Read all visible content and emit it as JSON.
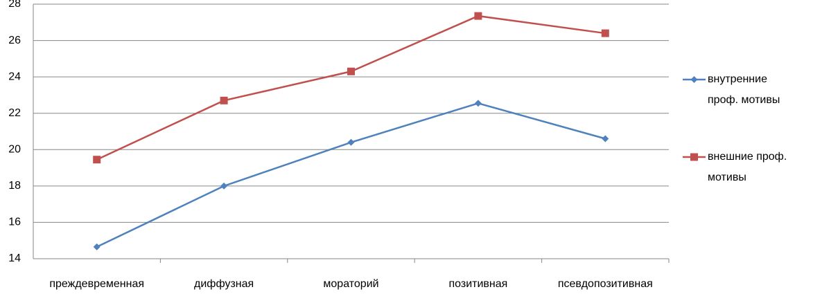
{
  "chart_data": {
    "type": "line",
    "categories": [
      "преждевременная",
      "диффузная",
      "мораторий",
      "позитивная",
      "псевдопозитивная"
    ],
    "series": [
      {
        "name": "внутренние проф. мотивы",
        "color": "#4f81bd",
        "marker": "diamond",
        "values": [
          14.65,
          18.0,
          20.4,
          22.55,
          20.6
        ]
      },
      {
        "name": "внешние проф. мотивы",
        "color": "#c0504d",
        "marker": "square",
        "values": [
          19.45,
          22.7,
          24.3,
          27.35,
          26.4
        ]
      }
    ],
    "ylim": [
      14,
      28
    ],
    "yticks": [
      14,
      16,
      18,
      20,
      22,
      24,
      26,
      28
    ],
    "grid": true,
    "legend": "right"
  }
}
